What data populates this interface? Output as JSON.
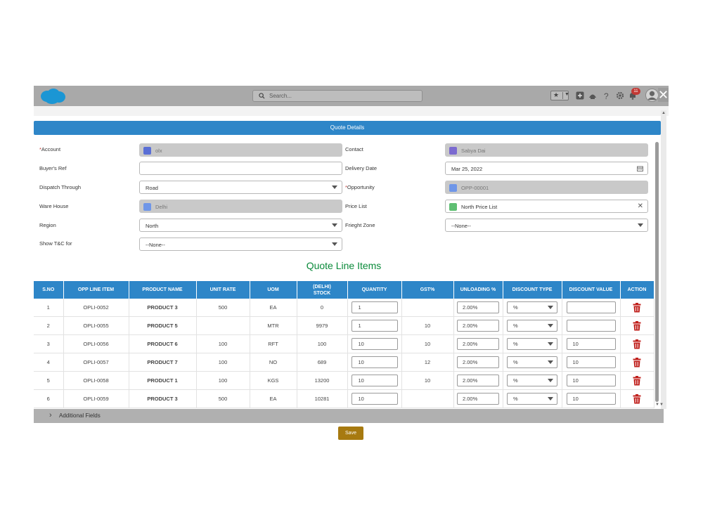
{
  "topbar": {
    "search_placeholder": "Search...",
    "notification_count": "11",
    "icons": [
      "cloud-logo",
      "search-icon",
      "star-icon",
      "add-icon",
      "trailhead-icon",
      "help-icon",
      "gear-icon",
      "bell-icon",
      "avatar",
      "close-icon"
    ]
  },
  "section": {
    "title": "Quote Details"
  },
  "form": {
    "account": {
      "label": "Account",
      "value": "olx"
    },
    "contact": {
      "label": "Contact",
      "value": "Sabya Dai"
    },
    "buyers_ref": {
      "label": "Buyer's Ref",
      "value": ""
    },
    "delivery_date": {
      "label": "Delivery Date",
      "value": "Mar 25, 2022"
    },
    "dispatch_through": {
      "label": "Dispatch Through",
      "value": "Road"
    },
    "opportunity": {
      "label": "Opportunity",
      "value": "OPP-00001"
    },
    "ware_house": {
      "label": "Ware House",
      "value": "Delhi"
    },
    "price_list": {
      "label": "Price List",
      "value": "North Price List"
    },
    "region": {
      "label": "Region",
      "value": "North"
    },
    "freight_zone": {
      "label": "Frieght Zone",
      "value": "--None--"
    },
    "show_tc": {
      "label": "Show T&C for",
      "value": "--None--"
    }
  },
  "line_items": {
    "title": "Quote Line Items",
    "columns": {
      "sno": "S.NO",
      "opp": "OPP LINE ITEM",
      "product": "PRODUCT NAME",
      "rate": "UNIT RATE",
      "uom": "UOM",
      "stock1": "(DELHI)",
      "stock2": "STOCK",
      "qty": "QUANTITY",
      "gst": "GST%",
      "unloading": "UNLOADING %",
      "dtype": "DISCOUNT TYPE",
      "dvalue": "DISCOUNT VALUE",
      "action": "ACTION"
    },
    "rows": [
      {
        "sno": "1",
        "opp": "OPLI-0052",
        "product": "PRODUCT 3",
        "rate": "500",
        "uom": "EA",
        "stock": "0",
        "qty": "1",
        "gst": "",
        "unloading": "2.00%",
        "dtype": "%",
        "dvalue": ""
      },
      {
        "sno": "2",
        "opp": "OPLI-0055",
        "product": "PRODUCT 5",
        "rate": "",
        "uom": "MTR",
        "stock": "9979",
        "qty": "1",
        "gst": "10",
        "unloading": "2.00%",
        "dtype": "%",
        "dvalue": ""
      },
      {
        "sno": "3",
        "opp": "OPLI-0056",
        "product": "PRODUCT 6",
        "rate": "100",
        "uom": "RFT",
        "stock": "100",
        "qty": "10",
        "gst": "10",
        "unloading": "2.00%",
        "dtype": "%",
        "dvalue": "10"
      },
      {
        "sno": "4",
        "opp": "OPLI-0057",
        "product": "PRODUCT 7",
        "rate": "100",
        "uom": "NO",
        "stock": "689",
        "qty": "10",
        "gst": "12",
        "unloading": "2.00%",
        "dtype": "%",
        "dvalue": "10"
      },
      {
        "sno": "5",
        "opp": "OPLI-0058",
        "product": "PRODUCT 1",
        "rate": "100",
        "uom": "KGS",
        "stock": "13200",
        "qty": "10",
        "gst": "10",
        "unloading": "2.00%",
        "dtype": "%",
        "dvalue": "10"
      },
      {
        "sno": "6",
        "opp": "OPLI-0059",
        "product": "PRODUCT 3",
        "rate": "500",
        "uom": "EA",
        "stock": "10281",
        "qty": "10",
        "gst": "",
        "unloading": "2.00%",
        "dtype": "%",
        "dvalue": "10"
      }
    ]
  },
  "additional_fields": {
    "label": "Additional Fields"
  },
  "actions": {
    "save_label": "Save"
  },
  "colors": {
    "header_blue": "#2e86c8",
    "title_green": "#0a8a3a",
    "product_gold": "#9e7c0c",
    "save_bg": "#a77a10",
    "trash_red": "#c0201c"
  }
}
